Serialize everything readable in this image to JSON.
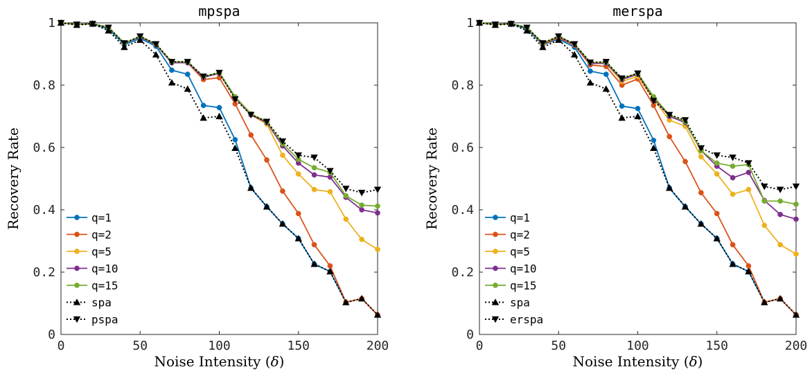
{
  "chart_data": [
    {
      "type": "line",
      "title": "mpspa",
      "xlabel_text": "Noise Intensity (",
      "xlabel_symbol": "δ",
      "xlabel_close": ")",
      "ylabel": "Recovery Rate",
      "xlim": [
        0,
        200
      ],
      "ylim": [
        0,
        1
      ],
      "xticks": [
        0,
        50,
        100,
        150,
        200
      ],
      "yticks": [
        0,
        0.2,
        0.4,
        0.6,
        0.8,
        1
      ],
      "ytick_labels": [
        "0",
        "0.2",
        "0.4",
        "0.6",
        "0.8",
        "1"
      ],
      "grid": false,
      "legend_position": "lower-left",
      "x": [
        0,
        10,
        20,
        30,
        40,
        50,
        60,
        70,
        80,
        90,
        100,
        110,
        120,
        130,
        140,
        150,
        160,
        170,
        180,
        190,
        200
      ],
      "series": [
        {
          "name": "q=1",
          "color": "#0072BD",
          "marker": "circle",
          "line": "solid",
          "values": [
            1.0,
            0.995,
            0.997,
            0.98,
            0.93,
            0.95,
            0.925,
            0.848,
            0.835,
            0.735,
            0.728,
            0.625,
            0.47,
            0.41,
            0.355,
            0.308,
            0.226,
            0.202,
            0.103,
            0.115,
            0.063
          ]
        },
        {
          "name": "q=2",
          "color": "#D95319",
          "marker": "circle",
          "line": "solid",
          "values": [
            1.0,
            0.995,
            0.997,
            0.985,
            0.935,
            0.955,
            0.93,
            0.872,
            0.872,
            0.818,
            0.824,
            0.74,
            0.64,
            0.56,
            0.46,
            0.388,
            0.288,
            0.22,
            0.103,
            0.115,
            0.063
          ]
        },
        {
          "name": "q=5",
          "color": "#EDB120",
          "marker": "circle",
          "line": "solid",
          "values": [
            1.0,
            0.995,
            0.997,
            0.985,
            0.935,
            0.955,
            0.93,
            0.872,
            0.872,
            0.828,
            0.838,
            0.76,
            0.705,
            0.675,
            0.575,
            0.515,
            0.465,
            0.458,
            0.37,
            0.305,
            0.273
          ]
        },
        {
          "name": "q=10",
          "color": "#7E2F8E",
          "marker": "circle",
          "line": "solid",
          "values": [
            1.0,
            0.995,
            0.997,
            0.985,
            0.935,
            0.955,
            0.93,
            0.872,
            0.872,
            0.825,
            0.838,
            0.76,
            0.705,
            0.68,
            0.605,
            0.55,
            0.512,
            0.505,
            0.44,
            0.4,
            0.39
          ]
        },
        {
          "name": "q=15",
          "color": "#77AC30",
          "marker": "circle",
          "line": "solid",
          "values": [
            1.0,
            0.995,
            0.997,
            0.985,
            0.935,
            0.957,
            0.932,
            0.875,
            0.875,
            0.828,
            0.84,
            0.763,
            0.708,
            0.683,
            0.612,
            0.562,
            0.535,
            0.52,
            0.445,
            0.415,
            0.412
          ]
        },
        {
          "name": "spa",
          "color": "#000000",
          "marker": "triangle-up",
          "line": "dotted",
          "values": [
            1.0,
            0.993,
            0.997,
            0.975,
            0.922,
            0.945,
            0.898,
            0.808,
            0.788,
            0.695,
            0.7,
            0.598,
            0.47,
            0.41,
            0.355,
            0.308,
            0.226,
            0.202,
            0.103,
            0.115,
            0.063
          ]
        },
        {
          "name": "pspa",
          "color": "#000000",
          "marker": "triangle-down",
          "line": "dotted",
          "values": [
            1.0,
            0.995,
            0.997,
            0.985,
            0.935,
            0.957,
            0.932,
            0.875,
            0.875,
            0.828,
            0.84,
            0.755,
            0.705,
            0.683,
            0.62,
            0.575,
            0.568,
            0.525,
            0.468,
            0.455,
            0.465
          ]
        }
      ]
    },
    {
      "type": "line",
      "title": "merspa",
      "xlabel_text": "Noise Intensity (",
      "xlabel_symbol": "δ",
      "xlabel_close": ")",
      "ylabel": "Recovery Rate",
      "xlim": [
        0,
        200
      ],
      "ylim": [
        0,
        1
      ],
      "xticks": [
        0,
        50,
        100,
        150,
        200
      ],
      "yticks": [
        0,
        0.2,
        0.4,
        0.6,
        0.8,
        1
      ],
      "ytick_labels": [
        "0",
        "0.2",
        "0.4",
        "0.6",
        "0.8",
        "1"
      ],
      "grid": false,
      "legend_position": "lower-left",
      "x": [
        0,
        10,
        20,
        30,
        40,
        50,
        60,
        70,
        80,
        90,
        100,
        110,
        120,
        130,
        140,
        150,
        160,
        170,
        180,
        190,
        200
      ],
      "series": [
        {
          "name": "q=1",
          "color": "#0072BD",
          "marker": "circle",
          "line": "solid",
          "values": [
            1.0,
            0.995,
            0.997,
            0.98,
            0.93,
            0.948,
            0.922,
            0.845,
            0.835,
            0.733,
            0.725,
            0.623,
            0.47,
            0.41,
            0.355,
            0.308,
            0.226,
            0.202,
            0.103,
            0.115,
            0.063
          ]
        },
        {
          "name": "q=2",
          "color": "#D95319",
          "marker": "circle",
          "line": "solid",
          "values": [
            1.0,
            0.995,
            0.997,
            0.985,
            0.932,
            0.952,
            0.928,
            0.865,
            0.86,
            0.8,
            0.82,
            0.735,
            0.635,
            0.555,
            0.455,
            0.388,
            0.288,
            0.22,
            0.103,
            0.115,
            0.063
          ]
        },
        {
          "name": "q=5",
          "color": "#EDB120",
          "marker": "circle",
          "line": "solid",
          "values": [
            1.0,
            0.995,
            0.997,
            0.985,
            0.935,
            0.955,
            0.93,
            0.87,
            0.87,
            0.812,
            0.828,
            0.755,
            0.688,
            0.668,
            0.57,
            0.515,
            0.45,
            0.465,
            0.35,
            0.288,
            0.258
          ]
        },
        {
          "name": "q=10",
          "color": "#7E2F8E",
          "marker": "circle",
          "line": "solid",
          "values": [
            1.0,
            0.995,
            0.997,
            0.985,
            0.935,
            0.955,
            0.93,
            0.87,
            0.87,
            0.818,
            0.835,
            0.76,
            0.7,
            0.68,
            0.59,
            0.54,
            0.503,
            0.52,
            0.43,
            0.385,
            0.37
          ]
        },
        {
          "name": "q=15",
          "color": "#77AC30",
          "marker": "circle",
          "line": "solid",
          "values": [
            1.0,
            0.995,
            0.997,
            0.985,
            0.935,
            0.957,
            0.932,
            0.873,
            0.873,
            0.822,
            0.838,
            0.763,
            0.705,
            0.683,
            0.59,
            0.55,
            0.54,
            0.545,
            0.428,
            0.428,
            0.418
          ]
        },
        {
          "name": "spa",
          "color": "#000000",
          "marker": "triangle-up",
          "line": "dotted",
          "values": [
            1.0,
            0.993,
            0.997,
            0.975,
            0.922,
            0.945,
            0.898,
            0.808,
            0.788,
            0.695,
            0.7,
            0.598,
            0.47,
            0.41,
            0.355,
            0.308,
            0.226,
            0.202,
            0.103,
            0.115,
            0.063
          ]
        },
        {
          "name": "erspa",
          "color": "#000000",
          "marker": "triangle-down",
          "line": "dotted",
          "values": [
            1.0,
            0.995,
            0.997,
            0.985,
            0.935,
            0.957,
            0.932,
            0.873,
            0.875,
            0.822,
            0.838,
            0.75,
            0.705,
            0.688,
            0.598,
            0.575,
            0.568,
            0.55,
            0.475,
            0.465,
            0.475
          ]
        }
      ]
    }
  ]
}
